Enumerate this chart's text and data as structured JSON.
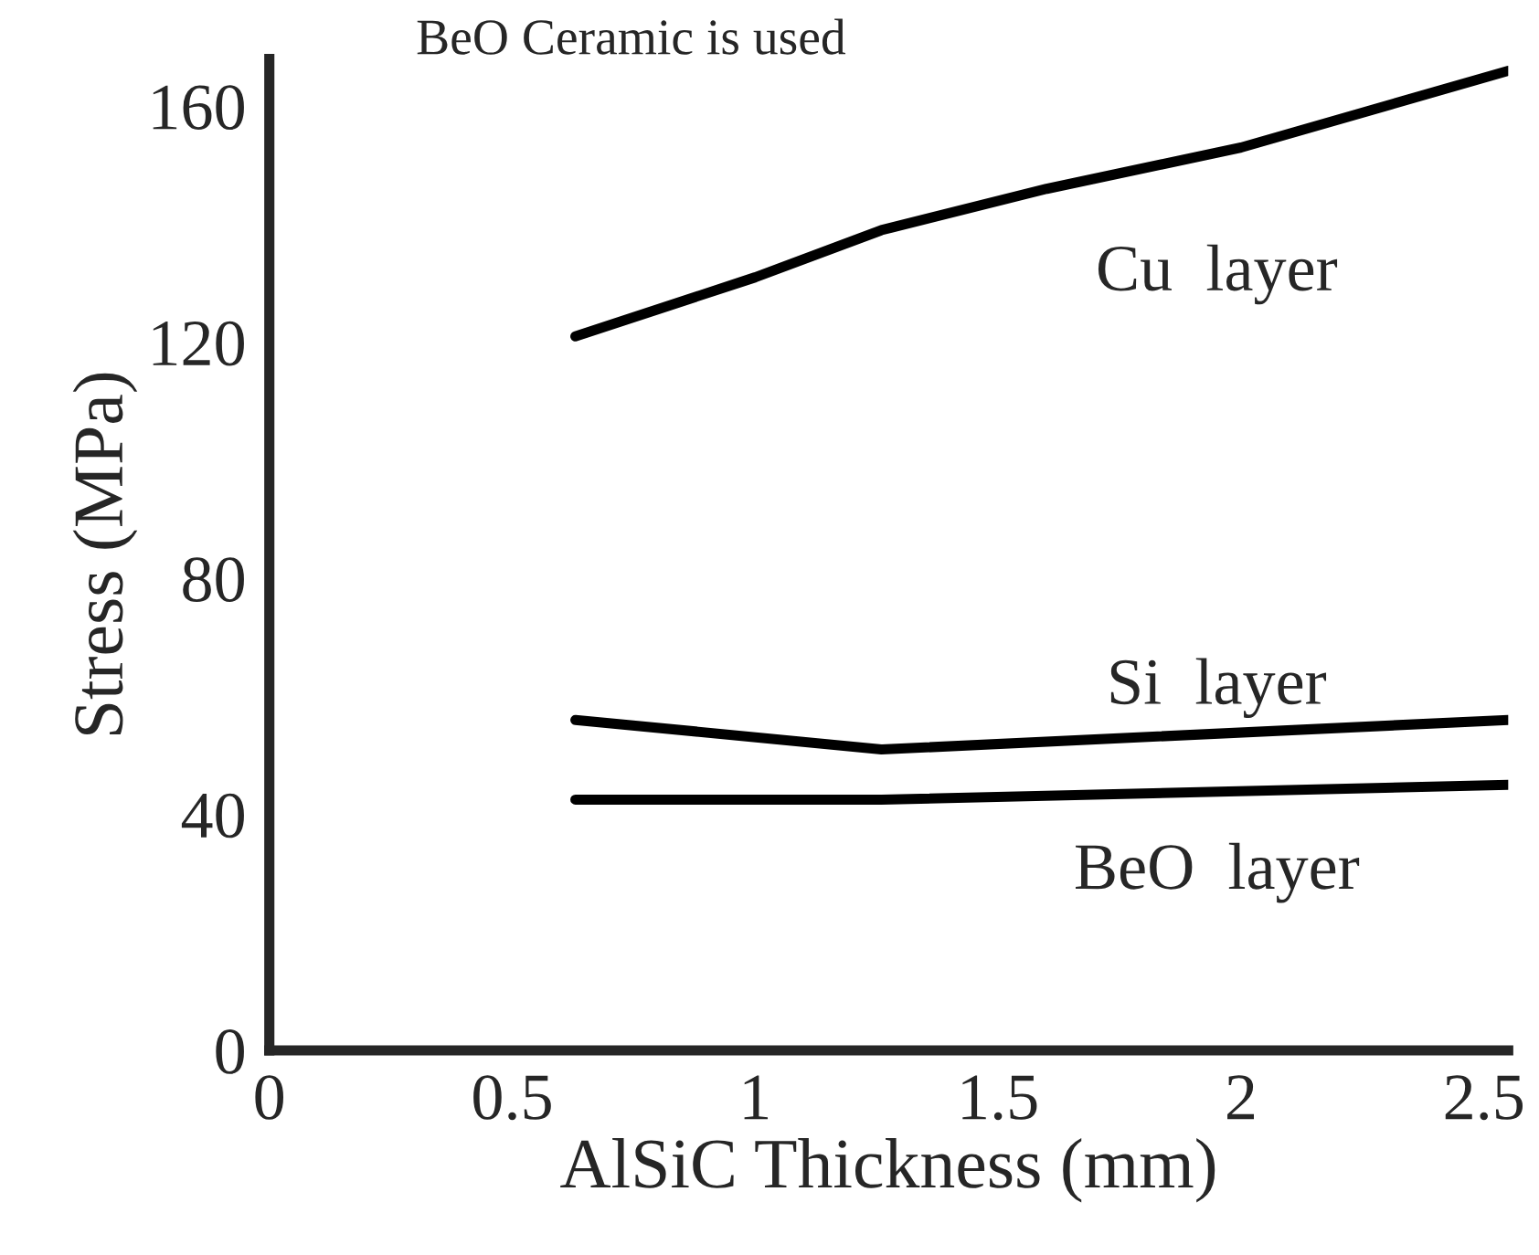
{
  "chart_data": {
    "type": "line",
    "title": "BeO Ceramic is used",
    "xlabel": "AlSiC Thickness (mm)",
    "ylabel": "Stress (MPa)",
    "series": [
      {
        "name": "Cu  layer",
        "color": "#000000",
        "x": [
          0.63,
          1.0,
          1.26,
          1.6,
          2.0,
          2.55
        ],
        "values": [
          121,
          131,
          139,
          146,
          153,
          166
        ]
      },
      {
        "name": "Si  layer",
        "color": "#000000",
        "x": [
          0.63,
          1.26,
          2.55
        ],
        "values": [
          56,
          51,
          56
        ]
      },
      {
        "name": "BeO  layer",
        "color": "#000000",
        "x": [
          0.63,
          1.26,
          2.55
        ],
        "values": [
          42.5,
          42.5,
          45
        ]
      }
    ],
    "xlim": [
      0,
      2.55
    ],
    "ylim": [
      0,
      168
    ],
    "xticks": [
      0,
      0.5,
      1,
      1.5,
      2,
      2.5
    ],
    "yticks": [
      0,
      40,
      80,
      120,
      160
    ],
    "grid": false,
    "legend": false,
    "marker": "none",
    "line_style": "solid"
  }
}
